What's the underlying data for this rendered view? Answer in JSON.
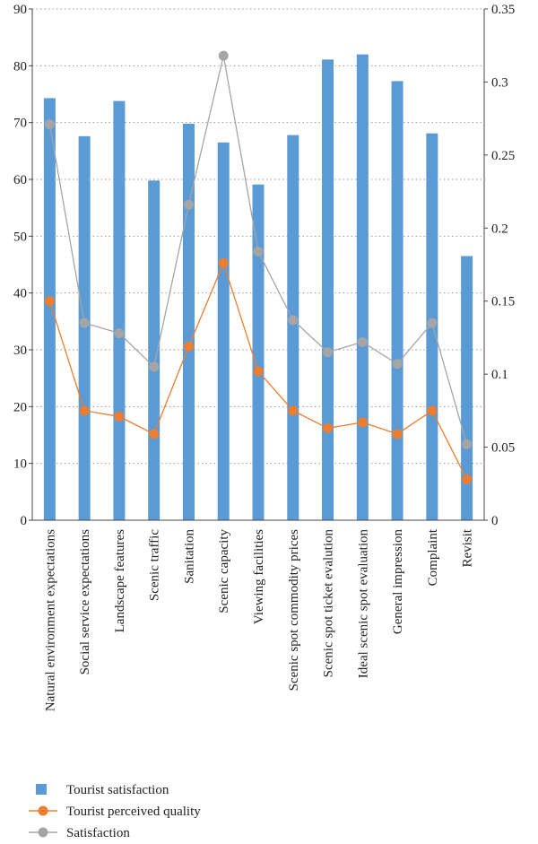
{
  "chart_data": {
    "type": "bar+line",
    "categories": [
      "Natural environment expectations",
      "Social service expectations",
      "Landscape features",
      "Scenic traffic",
      "Sanitation",
      "Scenic capacity",
      "Viewing facilities",
      "Scenic spot commodity prices",
      "Scenic spot ticket evalution",
      "Ideal scenic spot evaluation",
      "General impression",
      "Complaint",
      "Revisit"
    ],
    "series": [
      {
        "name": "Tourist satisfaction",
        "kind": "bar",
        "axis": "left",
        "values": [
          74.3,
          67.6,
          73.8,
          59.8,
          69.8,
          66.5,
          59.1,
          67.8,
          81.1,
          82.0,
          77.3,
          68.1,
          46.5
        ]
      },
      {
        "name": "Tourist perceived quality",
        "kind": "line",
        "axis": "right",
        "values": [
          0.15,
          0.075,
          0.071,
          0.059,
          0.119,
          0.176,
          0.102,
          0.075,
          0.063,
          0.067,
          0.059,
          0.075,
          0.028
        ]
      },
      {
        "name": "Satisfaction",
        "kind": "line",
        "axis": "right",
        "values": [
          0.271,
          0.135,
          0.128,
          0.105,
          0.216,
          0.318,
          0.184,
          0.137,
          0.115,
          0.122,
          0.107,
          0.135,
          0.052
        ]
      }
    ],
    "y_left": {
      "min": 0,
      "max": 90,
      "ticks": [
        "0",
        "10",
        "20",
        "30",
        "40",
        "50",
        "60",
        "70",
        "80",
        "90"
      ]
    },
    "y_right": {
      "min": 0,
      "max": 0.35,
      "ticks": [
        "0",
        "0.05",
        "0.1",
        "0.15",
        "0.2",
        "0.25",
        "0.3",
        "0.35"
      ]
    },
    "grid": "horizontal dotted",
    "legend_position": "bottom-left",
    "colors": {
      "bar": "#5b9bd5",
      "quality": "#ed7d31",
      "satisfaction": "#a5a5a5",
      "axis": "#444444",
      "grid": "#9a9a9a"
    }
  }
}
